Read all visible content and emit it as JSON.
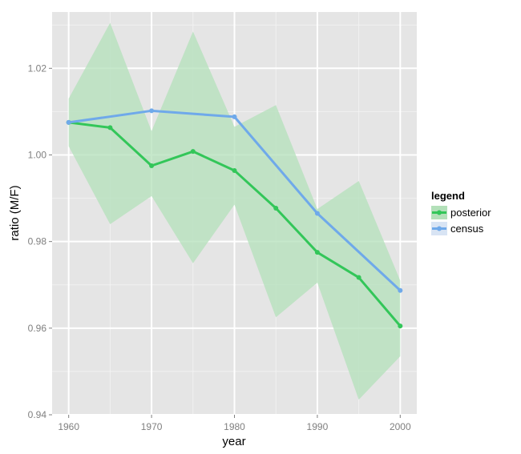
{
  "chart_data": {
    "type": "line",
    "title": "",
    "xlabel": "year",
    "ylabel": "ratio (M/F)",
    "xlim": [
      1958,
      2002
    ],
    "ylim": [
      0.94,
      1.033
    ],
    "xticks": [
      1960,
      1970,
      1980,
      1990,
      2000
    ],
    "yticks": [
      0.94,
      0.96,
      0.98,
      1.0,
      1.02
    ],
    "ytick_labels": [
      "0.94",
      "0.96",
      "0.98",
      "1.00",
      "1.02"
    ],
    "grid": true,
    "legend": {
      "title": "legend",
      "placement": "right",
      "entries": [
        "posterior",
        "census"
      ]
    },
    "colors": {
      "panel": "#e5e5e5",
      "grid_major": "#ffffff",
      "grid_minor": "#f2f2f2",
      "posterior": "#33c659",
      "census": "#6fa9ea",
      "band": "#b3e0b9"
    },
    "band": {
      "name": "posterior",
      "x": [
        1960,
        1965,
        1970,
        1975,
        1980,
        1985,
        1990,
        1995,
        2000
      ],
      "lower": [
        1.002,
        0.984,
        0.9905,
        0.975,
        0.9885,
        0.9625,
        0.9705,
        0.9435,
        0.9535
      ],
      "upper": [
        1.013,
        1.0305,
        1.0055,
        1.0285,
        1.0065,
        1.0115,
        0.9875,
        0.994,
        0.971
      ]
    },
    "series": [
      {
        "name": "posterior",
        "x": [
          1960,
          1965,
          1970,
          1975,
          1980,
          1985,
          1990,
          1995,
          2000
        ],
        "values": [
          1.0075,
          1.0063,
          0.9975,
          1.0008,
          0.9964,
          0.9877,
          0.9775,
          0.9717,
          0.9605
        ]
      },
      {
        "name": "census",
        "x": [
          1960,
          1970,
          1980,
          1990,
          2000
        ],
        "values": [
          1.0075,
          1.0102,
          1.0088,
          0.9865,
          0.9687
        ]
      }
    ]
  }
}
